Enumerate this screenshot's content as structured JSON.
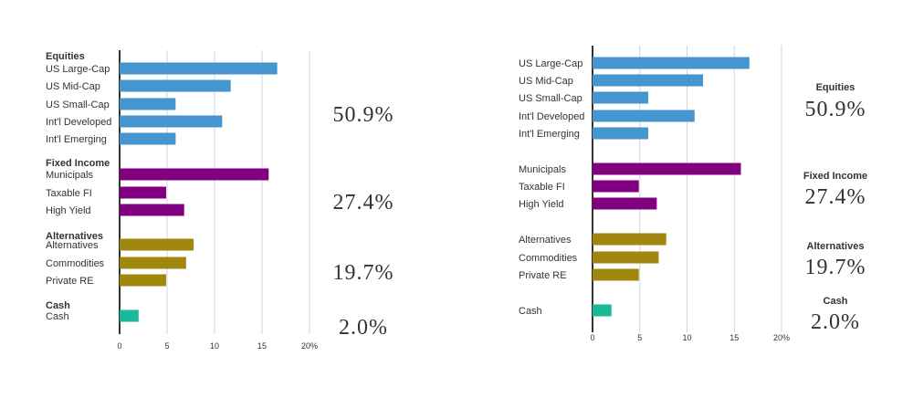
{
  "colors": {
    "Equities": "#4596cf",
    "Fixed Income": "#800080",
    "Alternatives": "#a0870d",
    "Cash": "#1ab99a"
  },
  "chart_data": [
    {
      "type": "bar",
      "orientation": "horizontal",
      "xlim": [
        0,
        20
      ],
      "x_ticks": [
        "0",
        "5",
        "10",
        "15",
        "20%"
      ],
      "grid": true,
      "groups": [
        {
          "name": "Equities",
          "total": "50.9%",
          "categories": [
            "US Large-Cap",
            "US Mid-Cap",
            "US Small-Cap",
            "Int'l Developed",
            "Int'l Emerging"
          ],
          "values": [
            16.6,
            11.7,
            5.9,
            10.8,
            5.9
          ]
        },
        {
          "name": "Fixed Income",
          "total": "27.4%",
          "categories": [
            "Municipals",
            "Taxable FI",
            "High Yield"
          ],
          "values": [
            15.7,
            4.9,
            6.8
          ]
        },
        {
          "name": "Alternatives",
          "total": "19.7%",
          "categories": [
            "Alternatives",
            "Commodities",
            "Private RE"
          ],
          "values": [
            7.8,
            7.0,
            4.9
          ]
        },
        {
          "name": "Cash",
          "total": "2.0%",
          "categories": [
            "Cash"
          ],
          "values": [
            2.0
          ]
        }
      ]
    },
    {
      "type": "bar",
      "orientation": "horizontal",
      "xlim": [
        0,
        20
      ],
      "x_ticks": [
        "0",
        "5",
        "10",
        "15",
        "20%"
      ],
      "grid": true,
      "groups": [
        {
          "name": "Equities",
          "total": "50.9%",
          "categories": [
            "US Large-Cap",
            "US Mid-Cap",
            "US Small-Cap",
            "Int'l Developed",
            "Int'l Emerging"
          ],
          "values": [
            16.6,
            11.7,
            5.9,
            10.8,
            5.9
          ]
        },
        {
          "name": "Fixed Income",
          "total": "27.4%",
          "categories": [
            "Municipals",
            "Taxable FI",
            "High Yield"
          ],
          "values": [
            15.7,
            4.9,
            6.8
          ]
        },
        {
          "name": "Alternatives",
          "total": "19.7%",
          "categories": [
            "Alternatives",
            "Commodities",
            "Private RE"
          ],
          "values": [
            7.8,
            7.0,
            4.9
          ]
        },
        {
          "name": "Cash",
          "total": "2.0%",
          "categories": [
            "Cash"
          ],
          "values": [
            2.0
          ]
        }
      ]
    }
  ]
}
